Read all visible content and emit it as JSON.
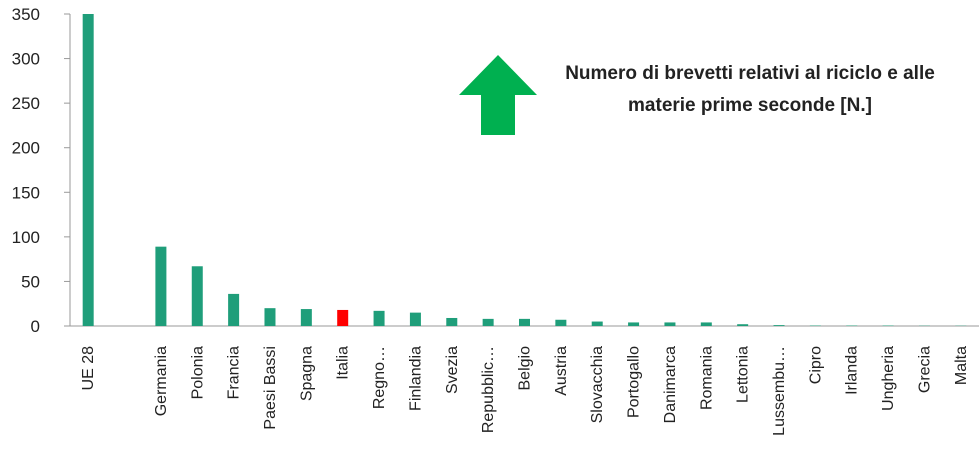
{
  "chart_data": {
    "type": "bar",
    "categories": [
      "UE 28",
      "",
      "Germania",
      "Polonia",
      "Francia",
      "Paesi Bassi",
      "Spagna",
      "Italia",
      "Regno…",
      "Finlandia",
      "Svezia",
      "Repubblic…",
      "Belgio",
      "Austria",
      "Slovacchia",
      "Portogallo",
      "Danimarca",
      "Romania",
      "Lettonia",
      "Lussembu…",
      "Cipro",
      "Irlanda",
      "Ungheria",
      "Grecia",
      "Malta"
    ],
    "values": [
      350,
      0,
      89,
      67,
      36,
      20,
      19,
      18,
      17,
      15,
      9,
      8,
      8,
      7,
      5,
      4,
      4,
      4,
      2,
      1,
      0.5,
      0.5,
      0.5,
      0.3,
      0.3
    ],
    "highlight_category": "Italia",
    "ylim": [
      0,
      350
    ],
    "yticks": [
      0,
      50,
      100,
      150,
      200,
      250,
      300,
      350
    ],
    "title": "",
    "xlabel": "",
    "ylabel": "",
    "annotation": "Numero di brevetti relativi al riciclo e alle materie prime seconde [N.]",
    "colors": {
      "bar": "#1f9e7a",
      "highlight": "#ff0000",
      "arrow": "#00b050",
      "axis": "#999999"
    },
    "arrow_icon": "up-arrow-icon",
    "grid": false
  }
}
